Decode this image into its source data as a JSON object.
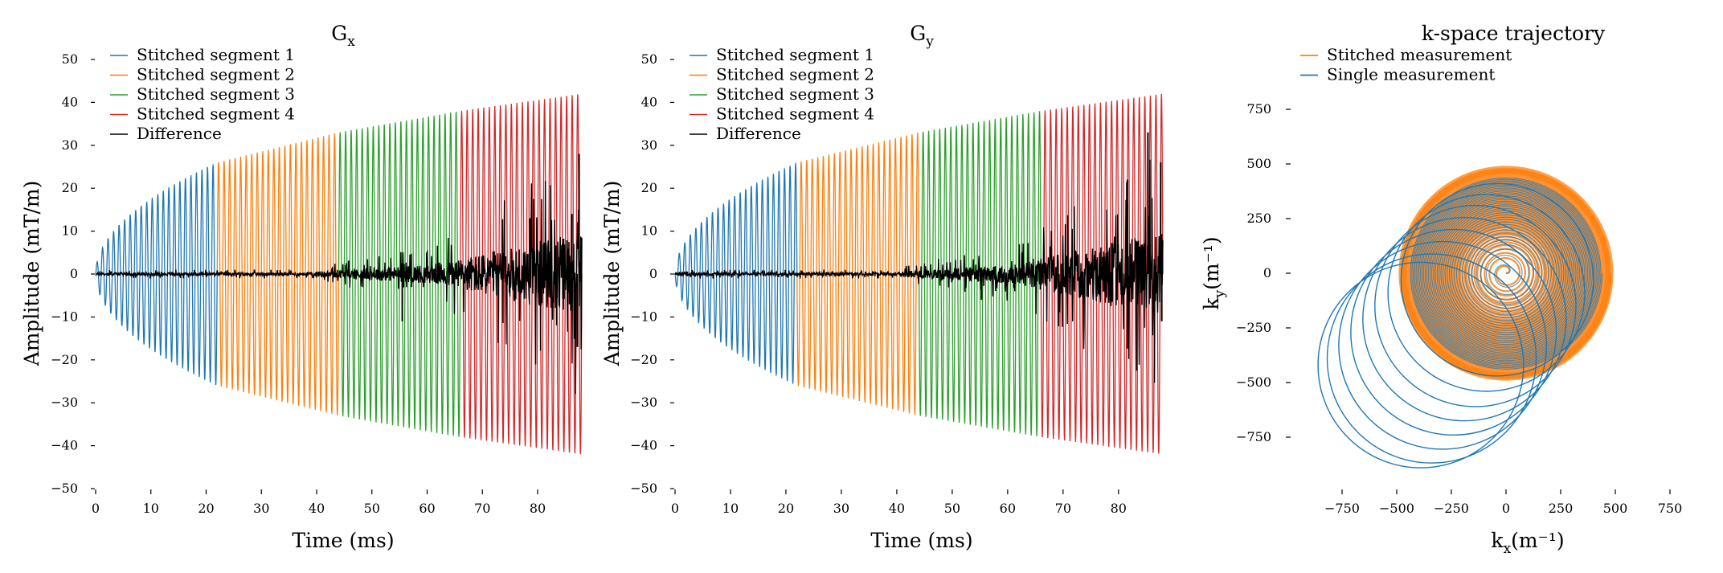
{
  "figure": {
    "description_free": true
  },
  "chart_data": [
    {
      "id": "gx",
      "type": "line",
      "title": "G",
      "title_sub": "x",
      "xlabel": "Time (ms)",
      "ylabel": "Amplitude (mT/m)",
      "xlim": [
        0,
        88
      ],
      "ylim": [
        -50,
        50
      ],
      "xticks": [
        0,
        10,
        20,
        30,
        40,
        50,
        60,
        70,
        80
      ],
      "xtick_labels": [
        "0",
        "10",
        "20",
        "30",
        "40",
        "50",
        "60",
        "70",
        "80"
      ],
      "yticks": [
        -50,
        -40,
        -30,
        -20,
        -10,
        0,
        10,
        20,
        30,
        40,
        50
      ],
      "ytick_labels": [
        "−50",
        "−40",
        "−30",
        "−20",
        "−10",
        "0",
        "10",
        "20",
        "30",
        "40",
        "50"
      ],
      "legend_position": "top-left",
      "series": [
        {
          "name": "Stitched segment 1",
          "color": "#1f77b4",
          "t_start": 0,
          "t_end": 22
        },
        {
          "name": "Stitched segment 2",
          "color": "#ff7f0e",
          "t_start": 22,
          "t_end": 44
        },
        {
          "name": "Stitched segment 3",
          "color": "#2ca02c",
          "t_start": 44,
          "t_end": 66
        },
        {
          "name": "Stitched segment 4",
          "color": "#d62728",
          "t_start": 66,
          "t_end": 88
        },
        {
          "name": "Difference",
          "color": "#000000",
          "t_start": 0,
          "t_end": 88
        }
      ],
      "envelope": {
        "t": [
          0,
          22,
          44,
          66,
          88
        ],
        "amplitude": [
          0,
          26,
          33,
          38,
          42
        ]
      },
      "cycles": 88,
      "difference_spikes": [
        {
          "t": 55.5,
          "value": -11
        },
        {
          "t": 87.5,
          "value": 28
        },
        {
          "t": 87.2,
          "value": -17
        },
        {
          "t": 86.2,
          "value": 14
        },
        {
          "t": 78.6,
          "value": 13
        }
      ]
    },
    {
      "id": "gy",
      "type": "line",
      "title": "G",
      "title_sub": "y",
      "xlabel": "Time (ms)",
      "ylabel": "Amplitude (mT/m)",
      "xlim": [
        0,
        88
      ],
      "ylim": [
        -50,
        50
      ],
      "xticks": [
        0,
        10,
        20,
        30,
        40,
        50,
        60,
        70,
        80
      ],
      "xtick_labels": [
        "0",
        "10",
        "20",
        "30",
        "40",
        "50",
        "60",
        "70",
        "80"
      ],
      "yticks": [
        -50,
        -40,
        -30,
        -20,
        -10,
        0,
        10,
        20,
        30,
        40,
        50
      ],
      "ytick_labels": [
        "−50",
        "−40",
        "−30",
        "−20",
        "−10",
        "0",
        "10",
        "20",
        "30",
        "40",
        "50"
      ],
      "legend_position": "top-left",
      "series": [
        {
          "name": "Stitched segment 1",
          "color": "#1f77b4",
          "t_start": 0,
          "t_end": 22
        },
        {
          "name": "Stitched segment 2",
          "color": "#ff7f0e",
          "t_start": 22,
          "t_end": 44
        },
        {
          "name": "Stitched segment 3",
          "color": "#2ca02c",
          "t_start": 44,
          "t_end": 66
        },
        {
          "name": "Stitched segment 4",
          "color": "#d62728",
          "t_start": 66,
          "t_end": 88
        },
        {
          "name": "Difference",
          "color": "#000000",
          "t_start": 0,
          "t_end": 88
        }
      ],
      "envelope": {
        "t": [
          0,
          22,
          44,
          66,
          88
        ],
        "amplitude": [
          0,
          26,
          33,
          38,
          42
        ]
      },
      "cycles": 88,
      "difference_spikes": [
        {
          "t": 55.3,
          "value": -6
        },
        {
          "t": 85.3,
          "value": 33
        },
        {
          "t": 87.6,
          "value": 26
        },
        {
          "t": 87.8,
          "value": -11
        },
        {
          "t": 81.6,
          "value": 22
        }
      ]
    },
    {
      "id": "kspace",
      "type": "line",
      "title": "k-space trajectory",
      "xlabel": "k",
      "xlabel_sub": "x",
      "xlabel_unit": "(m⁻¹)",
      "ylabel": "k",
      "ylabel_sub": "y",
      "ylabel_unit": "(m⁻¹)",
      "xlim": [
        -800,
        800
      ],
      "ylim": [
        -950,
        950
      ],
      "xticks": [
        -750,
        -500,
        -250,
        0,
        250,
        500,
        750
      ],
      "xtick_labels": [
        "−750",
        "−500",
        "−250",
        "0",
        "250",
        "500",
        "750"
      ],
      "yticks": [
        -750,
        -500,
        -250,
        0,
        250,
        500,
        750
      ],
      "ytick_labels": [
        "−750",
        "−500",
        "−250",
        "0",
        "250",
        "500",
        "750"
      ],
      "legend_position": "top-left",
      "series": [
        {
          "name": "Stitched measurement",
          "color": "#ff7f0e",
          "center": [
            0,
            0
          ],
          "max_radius": 480
        },
        {
          "name": "Single measurement",
          "color": "#1f77b4",
          "center": [
            0,
            0
          ],
          "max_radius": 440
        }
      ],
      "drift_circles": [
        {
          "cx": -40,
          "cy": -30,
          "r": 440
        },
        {
          "cx": -90,
          "cy": -90,
          "r": 450
        },
        {
          "cx": -140,
          "cy": -150,
          "r": 460
        },
        {
          "cx": -190,
          "cy": -210,
          "r": 465
        },
        {
          "cx": -240,
          "cy": -270,
          "r": 470
        },
        {
          "cx": -290,
          "cy": -330,
          "r": 475
        },
        {
          "cx": -340,
          "cy": -390,
          "r": 478
        },
        {
          "cx": -390,
          "cy": -420,
          "r": 470
        }
      ]
    }
  ]
}
